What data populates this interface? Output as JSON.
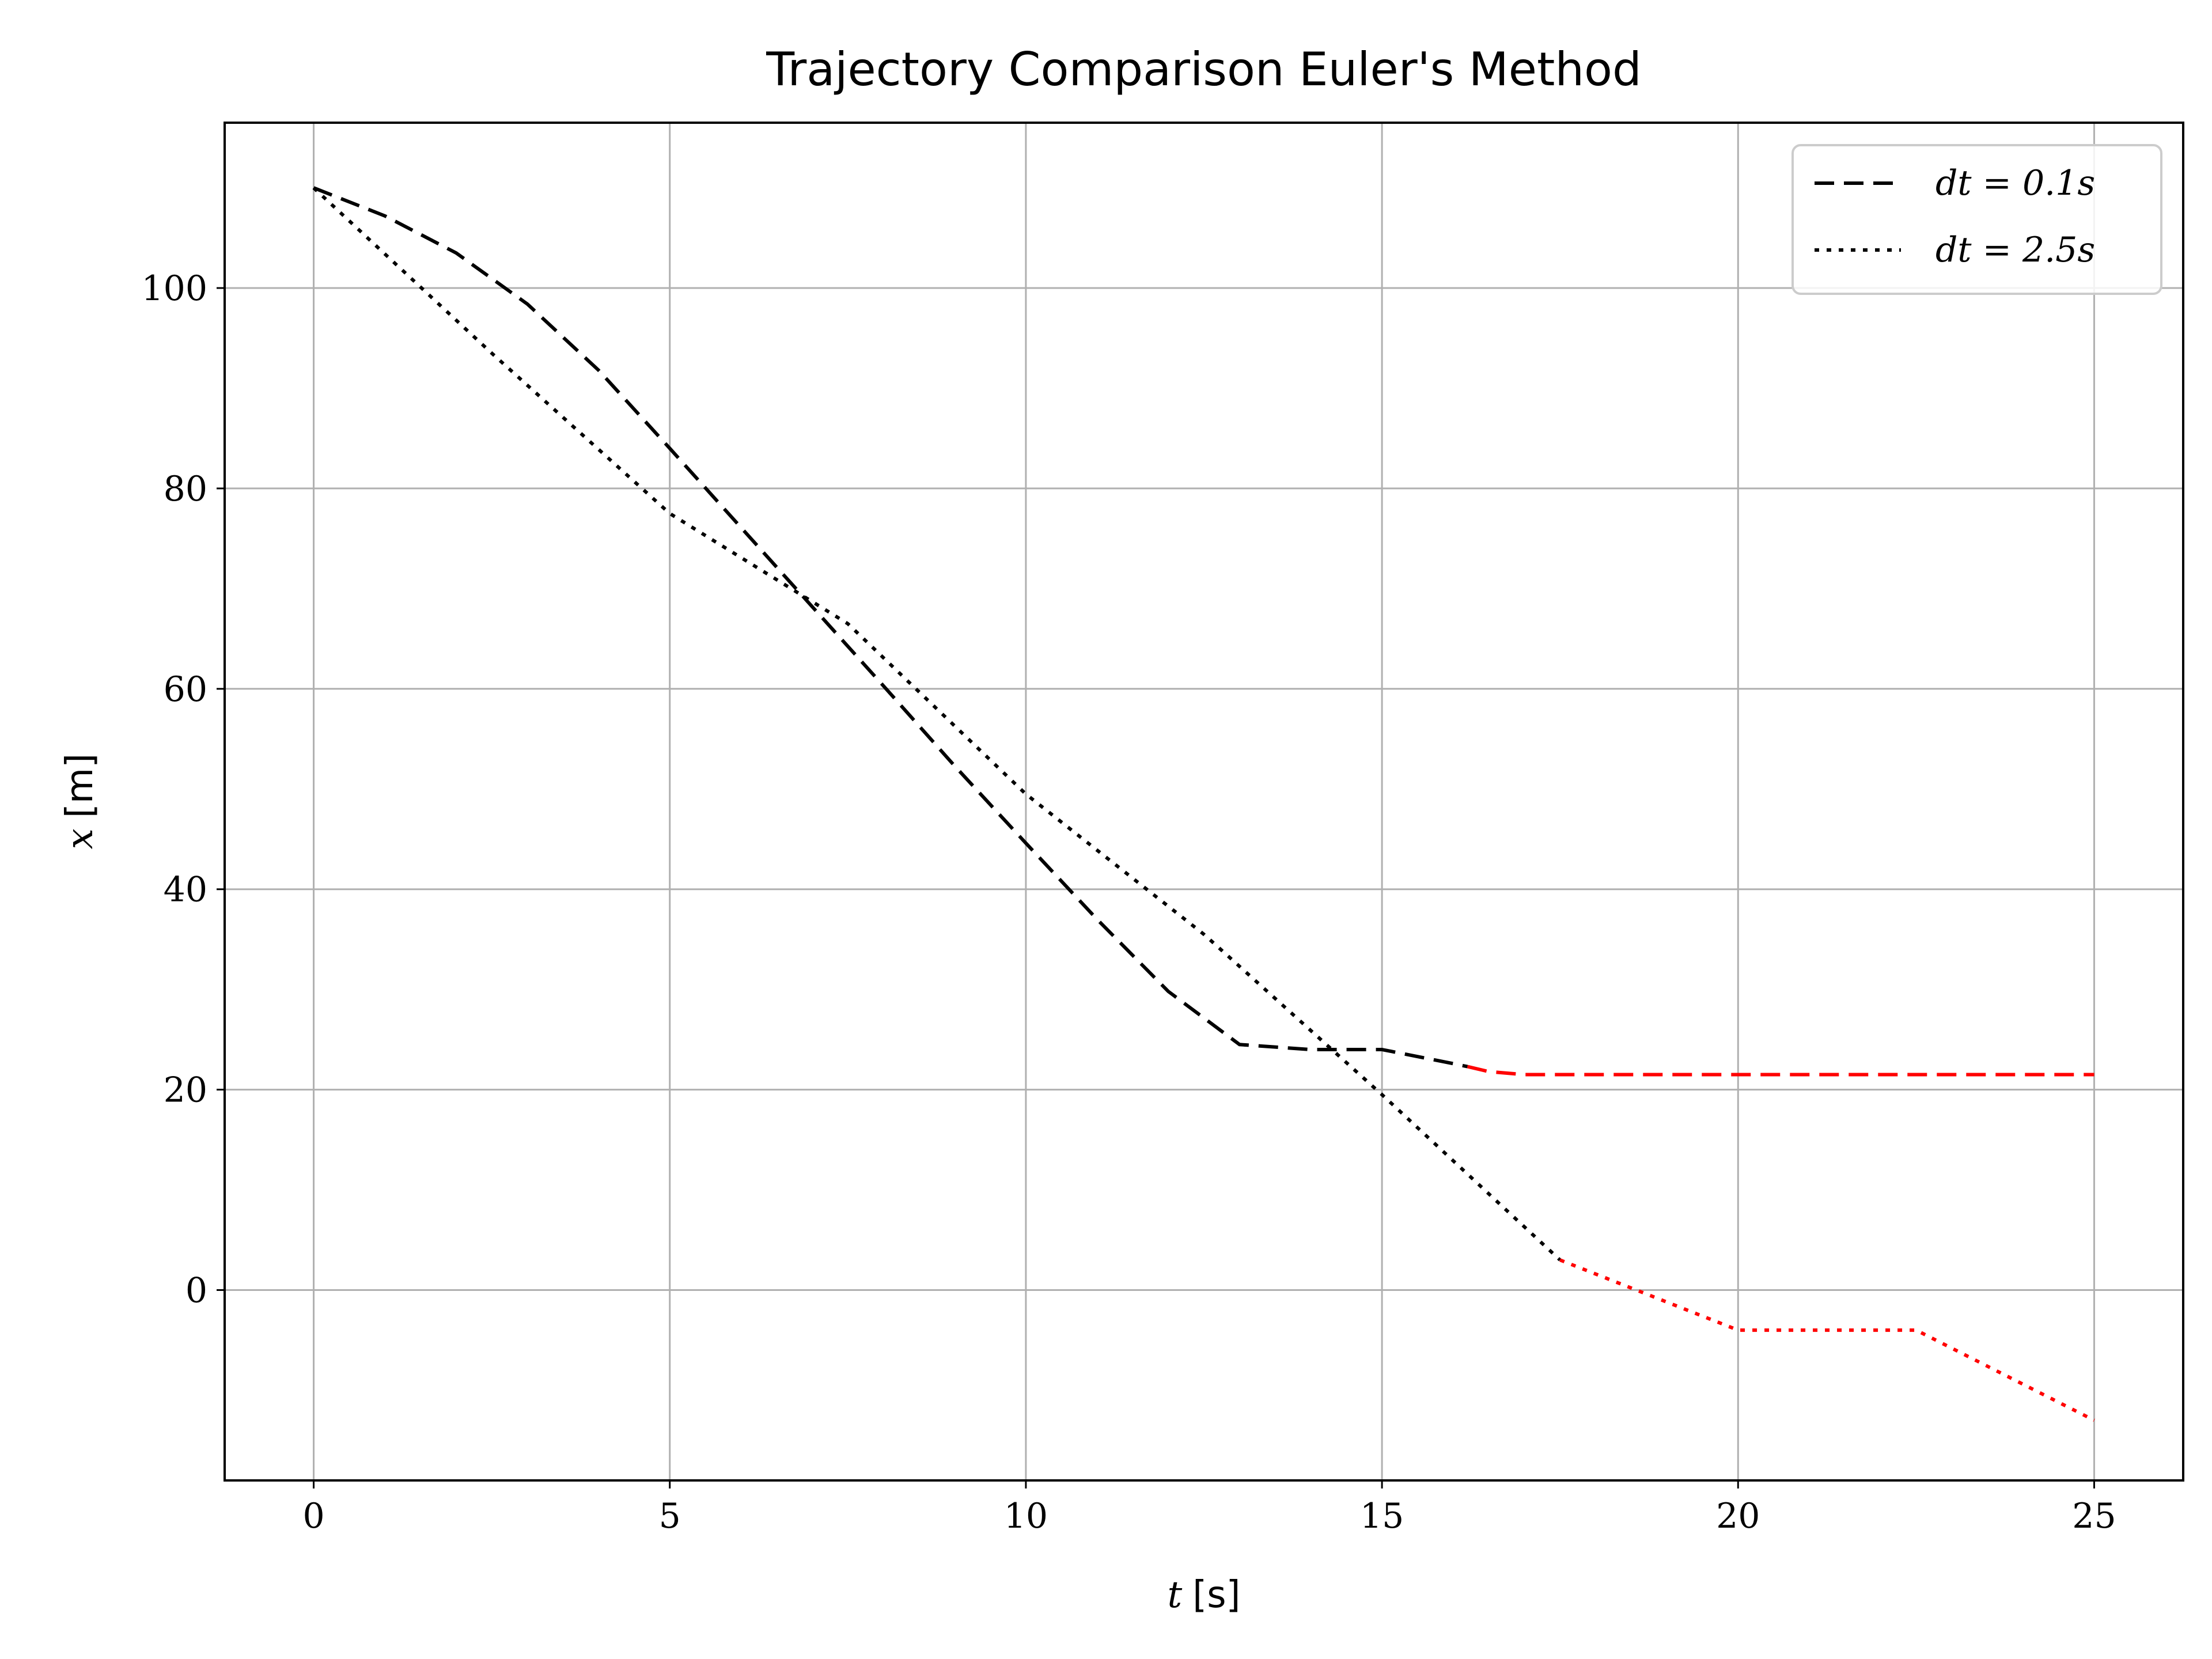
{
  "chart_data": {
    "type": "line",
    "title": "Trajectory Comparison Euler's Method",
    "xlabel_var": "t",
    "xlabel_unit": "[s]",
    "ylabel_var": "x",
    "ylabel_unit": "[m]",
    "xlim": [
      -1.25,
      26.25
    ],
    "ylim": [
      -19,
      116.5
    ],
    "xticks": [
      0,
      5,
      10,
      15,
      20,
      25
    ],
    "yticks": [
      0,
      20,
      40,
      60,
      80,
      100
    ],
    "grid": true,
    "legend_position": "top-right",
    "series": [
      {
        "name": "dt = 0.1s",
        "style": "dashed",
        "color": "#000000",
        "overflow_color": "#ff0000",
        "split_at_x": 16.2,
        "x": [
          0,
          1,
          2,
          3,
          4,
          5,
          6,
          7,
          8,
          9,
          10,
          11,
          12,
          13,
          14,
          15,
          16,
          16.2,
          16.5,
          17,
          18,
          19,
          20,
          21,
          22,
          23,
          24,
          25
        ],
        "y": [
          110,
          107.2,
          103.5,
          98.4,
          91.8,
          84,
          76.1,
          68.2,
          60.3,
          52.3,
          44.6,
          37,
          29.8,
          24.5,
          24.0,
          24.0,
          22.6,
          22.3,
          21.8,
          21.5,
          21.5,
          21.5,
          21.5,
          21.5,
          21.5,
          21.5,
          21.5,
          21.5
        ]
      },
      {
        "name": "dt = 2.5s",
        "style": "dotted",
        "color": "#000000",
        "overflow_color": "#ff0000",
        "split_at_x": 17.5,
        "x": [
          0,
          2.5,
          5,
          7.5,
          10,
          12.5,
          15,
          17.5,
          20,
          22.5,
          25
        ],
        "y": [
          110,
          93.5,
          77.5,
          66.5,
          49.5,
          35.5,
          19.5,
          3,
          -4,
          -4,
          -13
        ]
      }
    ]
  }
}
